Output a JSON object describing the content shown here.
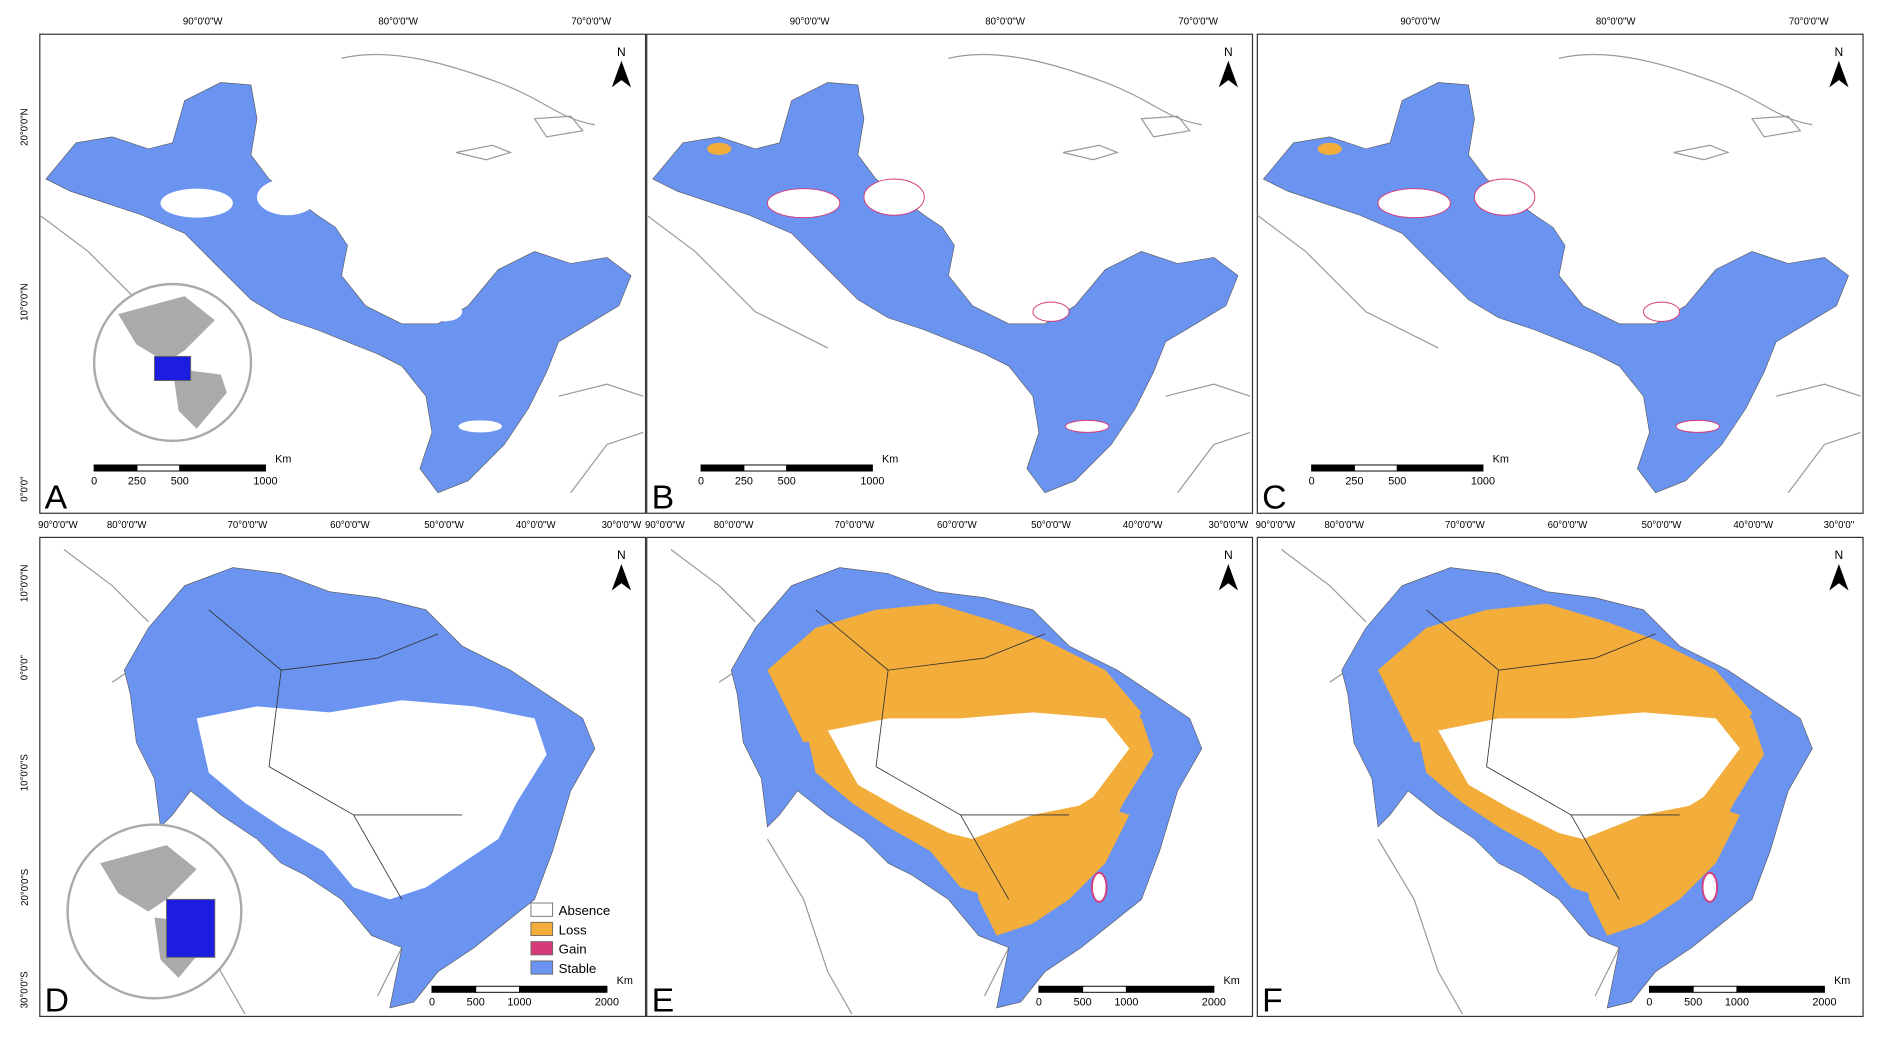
{
  "panels": [
    {
      "label": "A",
      "top_labels": [
        "90°0'0\"W",
        "80°0'0\"W",
        "70°0'0\"W"
      ],
      "left_labels": [
        "20°0'0\"N",
        "10°0'0\"N",
        "0°0'0\""
      ],
      "scale": {
        "ticks": [
          0,
          250,
          500,
          1000
        ],
        "unit": "Km"
      },
      "north": "N"
    },
    {
      "label": "B",
      "top_labels": [
        "90°0'0\"W",
        "80°0'0\"W",
        "70°0'0\"W"
      ],
      "scale": {
        "ticks": [
          0,
          250,
          500,
          1000
        ],
        "unit": "Km"
      },
      "north": "N"
    },
    {
      "label": "C",
      "top_labels": [
        "90°0'0\"W",
        "80°0'0\"W",
        "70°0'0\"W"
      ],
      "scale": {
        "ticks": [
          0,
          250,
          500,
          1000
        ],
        "unit": "Km"
      },
      "north": "N"
    },
    {
      "label": "D",
      "top_labels": [
        "90°0'0\"W",
        "80°0'0\"W",
        "70°0'0\"W",
        "60°0'0\"W",
        "50°0'0\"W",
        "40°0'0\"W",
        "30°0'0\"W"
      ],
      "left_labels": [
        "10°0'0\"N",
        "0°0'0\"",
        "10°0'0\"S",
        "20°0'0\"S",
        "30°0'0\"S"
      ],
      "scale": {
        "ticks": [
          0,
          500,
          1000,
          2000
        ],
        "unit": "Km"
      },
      "north": "N"
    },
    {
      "label": "E",
      "top_labels": [
        "90°0'0\"W",
        "80°0'0\"W",
        "70°0'0\"W",
        "60°0'0\"W",
        "50°0'0\"W",
        "40°0'0\"W",
        "30°0'0\"W"
      ],
      "scale": {
        "ticks": [
          0,
          500,
          1000,
          2000
        ],
        "unit": "Km"
      },
      "north": "N"
    },
    {
      "label": "F",
      "top_labels": [
        "90°0'0\"W",
        "80°0'0\"W",
        "70°0'0\"W",
        "60°0'0\"W",
        "50°0'0\"W",
        "40°0'0\"W",
        "30°0'0\""
      ],
      "scale": {
        "ticks": [
          0,
          500,
          1000,
          2000
        ],
        "unit": "Km"
      },
      "north": "N"
    }
  ],
  "legend": {
    "items": [
      "Absence",
      "Loss",
      "Gain",
      "Stable"
    ]
  }
}
